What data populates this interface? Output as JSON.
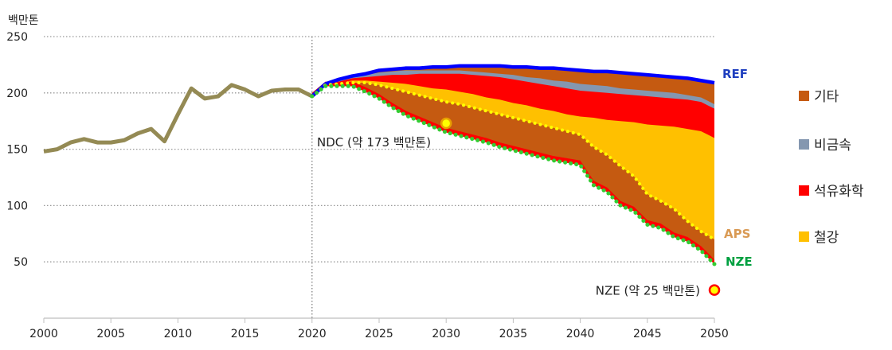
{
  "chart_data": {
    "type": "area",
    "ylabel": "백만톤",
    "x_ticks": [
      2000,
      2005,
      2010,
      2015,
      2020,
      2025,
      2030,
      2035,
      2040,
      2045,
      2050
    ],
    "y_ticks": [
      50,
      100,
      150,
      200,
      250
    ],
    "ylim": [
      0,
      250
    ],
    "xlim": [
      2000,
      2050
    ],
    "grid": "horizontal dotted",
    "vertical_marker_year": 2020,
    "historical": {
      "x": [
        2000,
        2001,
        2002,
        2003,
        2004,
        2005,
        2006,
        2007,
        2008,
        2009,
        2010,
        2011,
        2012,
        2013,
        2014,
        2015,
        2016,
        2017,
        2018,
        2019,
        2020
      ],
      "y": [
        148,
        150,
        156,
        159,
        156,
        156,
        158,
        164,
        168,
        157,
        181,
        204,
        195,
        197,
        207,
        203,
        197,
        202,
        203,
        203,
        197
      ]
    },
    "scenario_x": [
      2020,
      2021,
      2022,
      2023,
      2024,
      2025,
      2026,
      2027,
      2028,
      2029,
      2030,
      2031,
      2032,
      2033,
      2034,
      2035,
      2036,
      2037,
      2038,
      2039,
      2040,
      2041,
      2042,
      2043,
      2044,
      2045,
      2046,
      2047,
      2048,
      2049,
      2050
    ],
    "series": [
      {
        "name": "REF",
        "values": [
          197,
          208,
          212,
          215,
          217,
          220,
          221,
          222,
          222,
          223,
          223,
          224,
          224,
          224,
          224,
          223,
          223,
          222,
          222,
          221,
          220,
          219,
          219,
          218,
          217,
          216,
          215,
          214,
          213,
          211,
          209
        ]
      },
      {
        "name": "APS",
        "values": [
          197,
          207,
          208,
          209,
          209,
          207,
          204,
          201,
          198,
          195,
          192,
          190,
          187,
          184,
          181,
          178,
          175,
          172,
          169,
          166,
          163,
          152,
          145,
          135,
          126,
          110,
          104,
          97,
          86,
          77,
          70
        ]
      },
      {
        "name": "NZE",
        "values": [
          197,
          206,
          206,
          206,
          201,
          195,
          187,
          180,
          175,
          170,
          165,
          162,
          159,
          156,
          152,
          149,
          146,
          143,
          140,
          138,
          136,
          118,
          112,
          100,
          95,
          83,
          80,
          72,
          68,
          60,
          48
        ]
      }
    ],
    "stack_layers": [
      {
        "name": "철강",
        "color": "#FFC000",
        "top": [
          197,
          207,
          209,
          211,
          211,
          210,
          209,
          208,
          206,
          204,
          203,
          201,
          199,
          196,
          194,
          191,
          189,
          186,
          184,
          181,
          179,
          178,
          176,
          175,
          174,
          172,
          171,
          170,
          168,
          166,
          160
        ]
      },
      {
        "name": "석유화학",
        "color": "#FF0000",
        "top": [
          197,
          207,
          210,
          213,
          214,
          215,
          216,
          216,
          217,
          217,
          217,
          217,
          216,
          215,
          214,
          212,
          210,
          208,
          206,
          204,
          202,
          201,
          200,
          199,
          198,
          197,
          196,
          195,
          194,
          192,
          186
        ]
      },
      {
        "name": "비금속",
        "color": "#8497B0",
        "top": [
          197,
          208,
          211,
          214,
          216,
          218,
          219,
          220,
          220,
          220,
          220,
          220,
          219,
          218,
          217,
          216,
          214,
          213,
          211,
          210,
          208,
          207,
          206,
          204,
          203,
          202,
          201,
          200,
          198,
          196,
          190
        ]
      },
      {
        "name": "기타",
        "color": "#C55A11",
        "top": [
          197,
          208,
          212,
          215,
          217,
          220,
          221,
          222,
          222,
          223,
          223,
          224,
          224,
          224,
          224,
          223,
          223,
          222,
          222,
          221,
          220,
          219,
          219,
          218,
          217,
          216,
          215,
          214,
          213,
          211,
          209
        ]
      }
    ],
    "series_labels": {
      "ref": "REF",
      "aps": "APS",
      "nze": "NZE"
    },
    "annotations": {
      "ndc": {
        "label": "NDC (약 173 백만톤)",
        "x": 2030,
        "y": 173
      },
      "nze_target": {
        "label": "NZE (약 25 백만톤)",
        "x": 2050,
        "y": 25
      }
    },
    "legend": {
      "placement": "right",
      "items": [
        {
          "name": "기타",
          "color": "#C55A11"
        },
        {
          "name": "비금속",
          "color": "#8497B0"
        },
        {
          "name": "석유화학",
          "color": "#FF0000"
        },
        {
          "name": "철강",
          "color": "#FFC000"
        }
      ]
    },
    "colors": {
      "historical": "#948A54",
      "ref": "#0000FF",
      "aps_dots": "#FFFF00",
      "nze_dots": "#33CC33",
      "ref_label": "#1F3FBF",
      "aps_label": "#D99A54",
      "nze_label": "#00A040"
    }
  }
}
